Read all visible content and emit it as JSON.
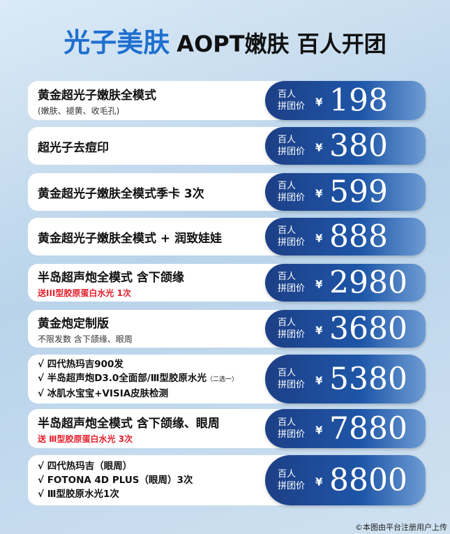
{
  "header": {
    "title_highlight": "光子美肤",
    "title_rest": "AOPT嫩肤 百人开团"
  },
  "items": [
    {
      "title": "黄金超光子嫩肤全模式",
      "subtitle": "(嫩肤、褪黄、收毛孔)",
      "price_label": [
        "百人",
        "拼团价"
      ],
      "currency": "¥",
      "price": 198
    },
    {
      "title": "超光子去痘印",
      "price_label": [
        "百人",
        "拼团价"
      ],
      "currency": "¥",
      "price": 380
    },
    {
      "title": "黄金超光子嫩肤全模式季卡 3次",
      "price_label": [
        "百人",
        "拼团价"
      ],
      "currency": "¥",
      "price": 599
    },
    {
      "title": "黄金超光子嫩肤全模式 + 润致娃娃",
      "price_label": [
        "百人",
        "拼团价"
      ],
      "currency": "¥",
      "price": 888
    },
    {
      "title": "半岛超声炮全模式 含下颌缘",
      "subtitle": "送III型胶原蛋白水光 1次",
      "subtitle_color": "#e41e2b",
      "price_label": [
        "百人",
        "拼团价"
      ],
      "currency": "¥",
      "price": 2980
    },
    {
      "title": "黄金炮定制版",
      "subtitle": "不限发数 含下颌缘、眼周",
      "price_label": [
        "百人",
        "拼团价"
      ],
      "currency": "¥",
      "price": 3680
    },
    {
      "lines": [
        {
          "text": "√ 四代热玛吉900发"
        },
        {
          "text": "√ 半岛超声炮D3.0全面部/Ⅲ型胶原水光",
          "note": "（二选一）"
        },
        {
          "text": "√ 冰肌水宝宝+VISIA皮肤检测"
        }
      ],
      "price_label": [
        "百人",
        "拼团价"
      ],
      "currency": "¥",
      "price": 5380
    },
    {
      "title": "半岛超声炮全模式 含下颌缘、眼周",
      "subtitle": "送 Ⅲ型胶原蛋白水光 3次",
      "subtitle_color": "#e41e2b",
      "price_label": [
        "百人",
        "拼团价"
      ],
      "currency": "¥",
      "price": 7880
    },
    {
      "lines": [
        {
          "text": "√ 四代热玛吉（眼周）"
        },
        {
          "text": "√ FOTONA 4D PLUS（眼周）3次"
        },
        {
          "text": "√ Ⅲ型胶原水光1次"
        }
      ],
      "price_label": [
        "百人",
        "拼团价"
      ],
      "currency": "¥",
      "price": 8800
    }
  ],
  "footer": "©本图由平台注册用户上传"
}
